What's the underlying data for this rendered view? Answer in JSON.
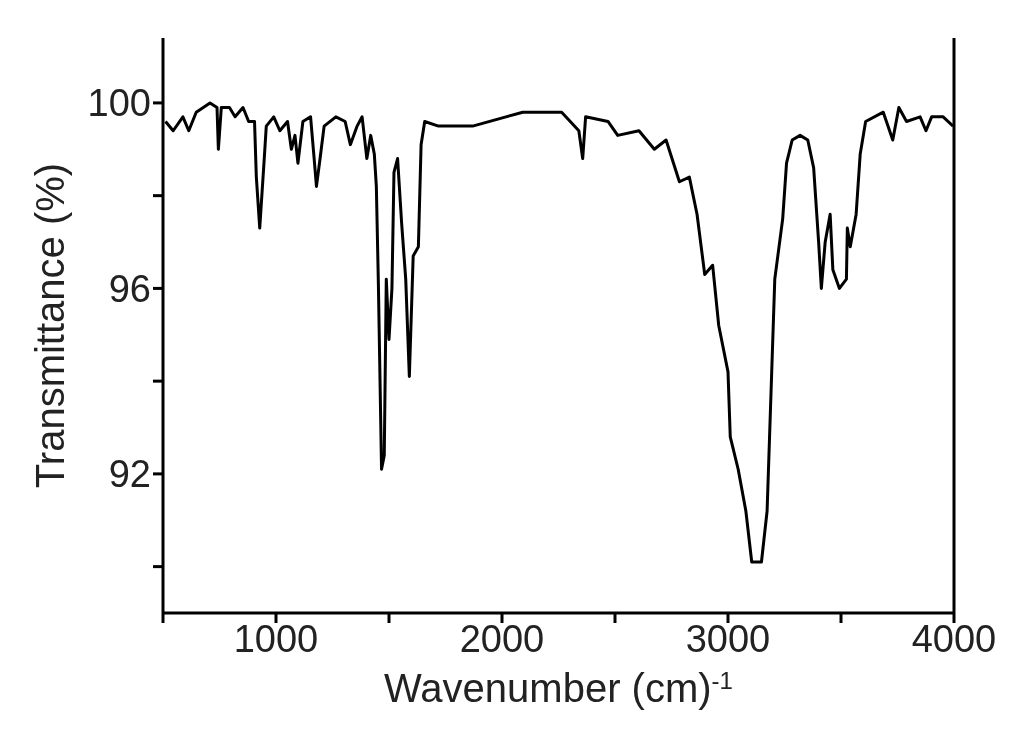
{
  "chart_data": {
    "type": "line",
    "xlabel": "Wavenumber (cm)$^{-1}$",
    "ylabel": "Transmittance (%)",
    "xlim": [
      500,
      4000
    ],
    "xticks": [
      {
        "value": 500,
        "label": null
      },
      1000,
      {
        "value": 1500,
        "label": null
      },
      2000,
      {
        "value": 2500,
        "label": null
      },
      3000,
      {
        "value": 3500,
        "label": null
      },
      4000
    ],
    "ylim": [
      89,
      101.4
    ],
    "yticks": [
      {
        "value": 90,
        "label": null
      },
      92,
      {
        "value": 94,
        "label": null
      },
      96,
      {
        "value": 98,
        "label": null
      },
      100
    ],
    "grid": false,
    "legend": false,
    "marker": "none",
    "line_style": "solid",
    "series": [
      {
        "color": "#000000",
        "x": [
          511,
          545,
          588,
          614,
          647,
          708,
          739,
          745,
          758,
          794,
          819,
          854,
          879,
          905,
          913,
          928,
          948,
          957,
          990,
          1017,
          1051,
          1068,
          1084,
          1097,
          1119,
          1153,
          1167,
          1179,
          1195,
          1213,
          1265,
          1306,
          1329,
          1359,
          1381,
          1402,
          1419,
          1435,
          1444,
          1453,
          1467,
          1479,
          1488,
          1500,
          1513,
          1522,
          1538,
          1556,
          1574,
          1590,
          1607,
          1630,
          1642,
          1658,
          1719,
          1870,
          2092,
          2264,
          2340,
          2357,
          2370,
          2469,
          2512,
          2606,
          2674,
          2726,
          2785,
          2829,
          2863,
          2897,
          2932,
          2959,
          3000,
          3010,
          3045,
          3079,
          3105,
          3148,
          3173,
          3190,
          3207,
          3242,
          3259,
          3284,
          3319,
          3353,
          3379,
          3401,
          3413,
          3430,
          3452,
          3464,
          3493,
          3524,
          3528,
          3541,
          3567,
          3585,
          3609,
          3687,
          3729,
          3756,
          3790,
          3850,
          3876,
          3901,
          3952,
          3996
        ],
        "values": [
          99.6,
          99.4,
          99.7,
          99.4,
          99.8,
          100.0,
          99.9,
          99.0,
          99.9,
          99.9,
          99.7,
          99.9,
          99.6,
          99.6,
          98.4,
          97.3,
          98.8,
          99.5,
          99.7,
          99.4,
          99.6,
          99.0,
          99.3,
          98.7,
          99.6,
          99.7,
          98.9,
          98.2,
          98.8,
          99.5,
          99.7,
          99.6,
          99.1,
          99.5,
          99.7,
          98.8,
          99.3,
          98.9,
          98.2,
          96.1,
          92.1,
          92.4,
          96.2,
          94.9,
          96.0,
          98.5,
          98.8,
          97.4,
          96.2,
          94.1,
          96.7,
          96.9,
          99.1,
          99.6,
          99.5,
          99.5,
          99.8,
          99.8,
          99.4,
          98.8,
          99.7,
          99.6,
          99.3,
          99.4,
          99.0,
          99.2,
          98.3,
          98.4,
          97.6,
          96.3,
          96.5,
          95.2,
          94.2,
          92.8,
          92.1,
          91.2,
          90.1,
          90.1,
          91.2,
          93.7,
          96.2,
          97.5,
          98.7,
          99.2,
          99.3,
          99.2,
          98.6,
          97.0,
          96.0,
          97.0,
          97.6,
          96.4,
          96.0,
          96.2,
          97.3,
          96.9,
          97.6,
          98.9,
          99.6,
          99.8,
          99.2,
          99.9,
          99.6,
          99.7,
          99.4,
          99.7,
          99.7,
          99.5
        ]
      }
    ]
  }
}
